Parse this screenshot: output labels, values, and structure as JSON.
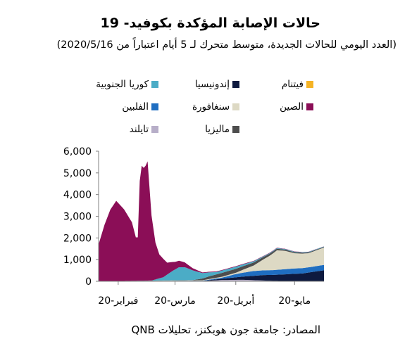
{
  "title": "حالات الإصابة المؤكدة بكوفيد- 19",
  "subtitle": "(العدد اليومي للحالات الجديدة، متوسط متحرك لـ 5 أيام اعتباراً من 2020/5/16)",
  "source": "المصادر: جامعة جون هوبكنز، تحليلات QNB",
  "colors": {
    "china": "#8B0E57",
    "korea": "#4BACC6",
    "singapore": "#DDD9C4",
    "philippines": "#1F6EC1",
    "indonesia": "#0E1A3F",
    "malaysia": "#4D4D4D",
    "vietnam": "#F5B324",
    "thailand": "#B7AEC8"
  },
  "chart_data": {
    "type": "area",
    "stacked": true,
    "ylim": [
      0,
      6000
    ],
    "yticks": [
      "0",
      "1,000",
      "2,000",
      "3,000",
      "4,000",
      "5,000",
      "6,000"
    ],
    "ytick_values": [
      0,
      1000,
      2000,
      3000,
      4000,
      5000,
      6000
    ],
    "xtick_labels": [
      "فبراير-20",
      "مارس-20",
      "أبريل-20",
      "مايو-20"
    ],
    "x_start": "2020-01-22",
    "x_end": "2020-05-16",
    "xticks": [
      "2020-02-01",
      "2020-03-01",
      "2020-04-01",
      "2020-05-01"
    ],
    "legend": [
      {
        "key": "korea",
        "label": "كوريا الجنوبية"
      },
      {
        "key": "indonesia",
        "label": "إندونيسيا"
      },
      {
        "key": "vietnam",
        "label": "فيتنام"
      },
      {
        "key": "philippines",
        "label": "الفلبين"
      },
      {
        "key": "singapore",
        "label": "سنغافورة"
      },
      {
        "key": "china",
        "label": "الصين"
      },
      {
        "key": "thailand",
        "label": "تايلند"
      },
      {
        "key": "malaysia",
        "label": "ماليزيا"
      }
    ],
    "stack_order": [
      "vietnam",
      "thailand",
      "indonesia",
      "philippines",
      "singapore",
      "malaysia",
      "korea",
      "china"
    ],
    "series": [
      {
        "key": "vietnam",
        "name": "فيتنام",
        "x": [
          "2020-01-22",
          "2020-05-16"
        ],
        "values": [
          0,
          0
        ]
      },
      {
        "key": "thailand",
        "name": "تايلند",
        "x": [
          "2020-01-22",
          "2020-03-15",
          "2020-03-25",
          "2020-04-05",
          "2020-04-20",
          "2020-05-16"
        ],
        "values": [
          0,
          10,
          60,
          70,
          20,
          5
        ]
      },
      {
        "key": "indonesia",
        "name": "إندونيسيا",
        "x": [
          "2020-01-22",
          "2020-03-15",
          "2020-03-25",
          "2020-04-05",
          "2020-04-15",
          "2020-04-25",
          "2020-05-05",
          "2020-05-12",
          "2020-05-16"
        ],
        "values": [
          0,
          10,
          60,
          150,
          250,
          300,
          350,
          450,
          500
        ]
      },
      {
        "key": "philippines",
        "name": "الفلبين",
        "x": [
          "2020-01-22",
          "2020-03-15",
          "2020-03-25",
          "2020-04-01",
          "2020-04-10",
          "2020-04-20",
          "2020-05-01",
          "2020-05-10",
          "2020-05-16"
        ],
        "values": [
          0,
          10,
          50,
          150,
          220,
          220,
          250,
          240,
          250
        ]
      },
      {
        "key": "singapore",
        "name": "سنغافورة",
        "x": [
          "2020-01-22",
          "2020-03-15",
          "2020-03-25",
          "2020-04-01",
          "2020-04-10",
          "2020-04-18",
          "2020-04-22",
          "2020-04-26",
          "2020-05-01",
          "2020-05-08",
          "2020-05-16"
        ],
        "values": [
          0,
          20,
          40,
          60,
          250,
          650,
          900,
          850,
          700,
          650,
          800
        ]
      },
      {
        "key": "malaysia",
        "name": "ماليزيا",
        "x": [
          "2020-01-22",
          "2020-03-10",
          "2020-03-18",
          "2020-03-25",
          "2020-04-01",
          "2020-04-08",
          "2020-04-15",
          "2020-04-25",
          "2020-05-05",
          "2020-05-16"
        ],
        "values": [
          0,
          10,
          120,
          180,
          180,
          150,
          110,
          60,
          40,
          30
        ]
      },
      {
        "key": "korea",
        "name": "كوريا الجنوبية",
        "x": [
          "2020-01-22",
          "2020-02-18",
          "2020-02-24",
          "2020-02-29",
          "2020-03-03",
          "2020-03-06",
          "2020-03-10",
          "2020-03-15",
          "2020-03-22",
          "2020-04-01",
          "2020-04-15",
          "2020-05-16"
        ],
        "values": [
          0,
          5,
          150,
          450,
          600,
          600,
          450,
          250,
          110,
          100,
          30,
          20
        ]
      },
      {
        "key": "china",
        "name": "الصين",
        "x": [
          "2020-01-22",
          "2020-01-25",
          "2020-01-28",
          "2020-01-31",
          "2020-02-02",
          "2020-02-04",
          "2020-02-06",
          "2020-02-08",
          "2020-02-10",
          "2020-02-11",
          "2020-02-12",
          "2020-02-13",
          "2020-02-14",
          "2020-02-15",
          "2020-02-16",
          "2020-02-18",
          "2020-02-20",
          "2020-02-22",
          "2020-02-24",
          "2020-02-26",
          "2020-02-28",
          "2020-03-01",
          "2020-03-05",
          "2020-03-10",
          "2020-03-15",
          "2020-05-16"
        ],
        "values": [
          1700,
          2600,
          3300,
          3700,
          3500,
          3300,
          3000,
          2700,
          2000,
          2000,
          4600,
          5300,
          5200,
          5300,
          5500,
          3000,
          1700,
          1100,
          850,
          550,
          450,
          350,
          250,
          100,
          30,
          5
        ]
      }
    ]
  }
}
